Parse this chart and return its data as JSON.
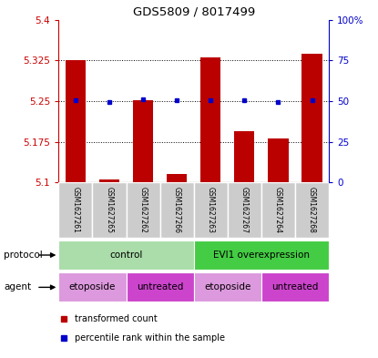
{
  "title": "GDS5809 / 8017499",
  "samples": [
    "GSM1627261",
    "GSM1627265",
    "GSM1627262",
    "GSM1627266",
    "GSM1627263",
    "GSM1627267",
    "GSM1627264",
    "GSM1627268"
  ],
  "bar_values": [
    5.325,
    5.105,
    5.252,
    5.115,
    5.33,
    5.195,
    5.182,
    5.338
  ],
  "percentile_values": [
    5.252,
    5.248,
    5.254,
    5.251,
    5.252,
    5.252,
    5.248,
    5.252
  ],
  "ylim": [
    5.1,
    5.4
  ],
  "yticks": [
    5.1,
    5.175,
    5.25,
    5.325,
    5.4
  ],
  "ytick_labels": [
    "5.1",
    "5.175",
    "5.25",
    "5.325",
    "5.4"
  ],
  "right_yticks": [
    0,
    25,
    50,
    75,
    100
  ],
  "right_ytick_labels": [
    "0",
    "25",
    "50",
    "75",
    "100%"
  ],
  "bar_color": "#bb0000",
  "dot_color": "#0000cc",
  "bar_base": 5.1,
  "protocol_labels": [
    {
      "text": "control",
      "start": 0,
      "end": 3,
      "color": "#aaddaa"
    },
    {
      "text": "EVI1 overexpression",
      "start": 4,
      "end": 7,
      "color": "#44cc44"
    }
  ],
  "agent_groups": [
    {
      "text": "etoposide",
      "start": 0,
      "end": 1,
      "color": "#dd99dd"
    },
    {
      "text": "untreated",
      "start": 2,
      "end": 3,
      "color": "#cc44cc"
    },
    {
      "text": "etoposide",
      "start": 4,
      "end": 5,
      "color": "#dd99dd"
    },
    {
      "text": "untreated",
      "start": 6,
      "end": 7,
      "color": "#cc44cc"
    }
  ],
  "legend_bar_color": "#bb0000",
  "legend_dot_color": "#0000cc",
  "legend_bar_text": "transformed count",
  "legend_dot_text": "percentile rank within the sample",
  "xlabel_protocol": "protocol",
  "xlabel_agent": "agent",
  "axis_color_left": "#cc0000",
  "axis_color_right": "#0000cc",
  "label_bg_color": "#cccccc",
  "label_sep_color": "#ffffff"
}
